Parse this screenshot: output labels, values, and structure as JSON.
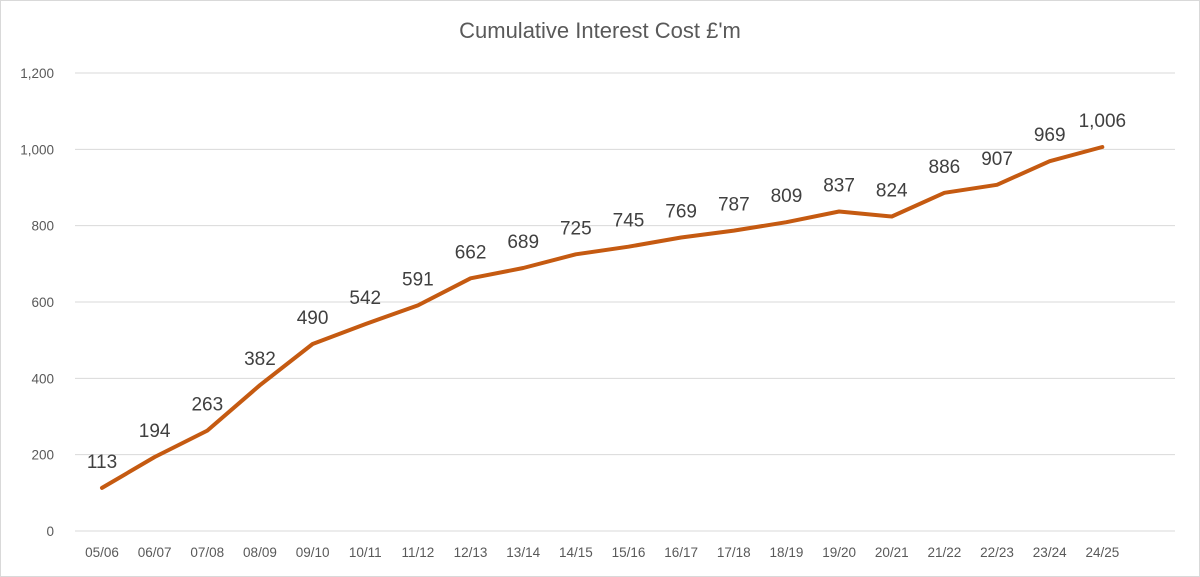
{
  "chart_data": {
    "type": "line",
    "title": "Cumulative Interest Cost £'m",
    "xlabel": "",
    "ylabel": "",
    "ylim": [
      0,
      1200
    ],
    "yticks": [
      0,
      200,
      400,
      600,
      800,
      1000,
      1200
    ],
    "ytick_labels": [
      "0",
      "200",
      "400",
      "600",
      "800",
      "1,000",
      "1,200"
    ],
    "grid": true,
    "legend": "none",
    "categories": [
      "05/06",
      "06/07",
      "07/08",
      "08/09",
      "09/10",
      "10/11",
      "11/12",
      "12/13",
      "13/14",
      "14/15",
      "15/16",
      "16/17",
      "17/18",
      "18/19",
      "19/20",
      "20/21",
      "21/22",
      "22/23",
      "23/24",
      "24/25"
    ],
    "series": [
      {
        "name": "Cumulative Interest Cost",
        "values": [
          113,
          194,
          263,
          382,
          490,
          542,
          591,
          662,
          689,
          725,
          745,
          769,
          787,
          809,
          837,
          824,
          886,
          907,
          969,
          1006
        ],
        "labels": [
          "113",
          "194",
          "263",
          "382",
          "490",
          "542",
          "591",
          "662",
          "689",
          "725",
          "745",
          "769",
          "787",
          "809",
          "837",
          "824",
          "886",
          "907",
          "969",
          "1,006"
        ],
        "color": "#c55a11"
      }
    ]
  }
}
